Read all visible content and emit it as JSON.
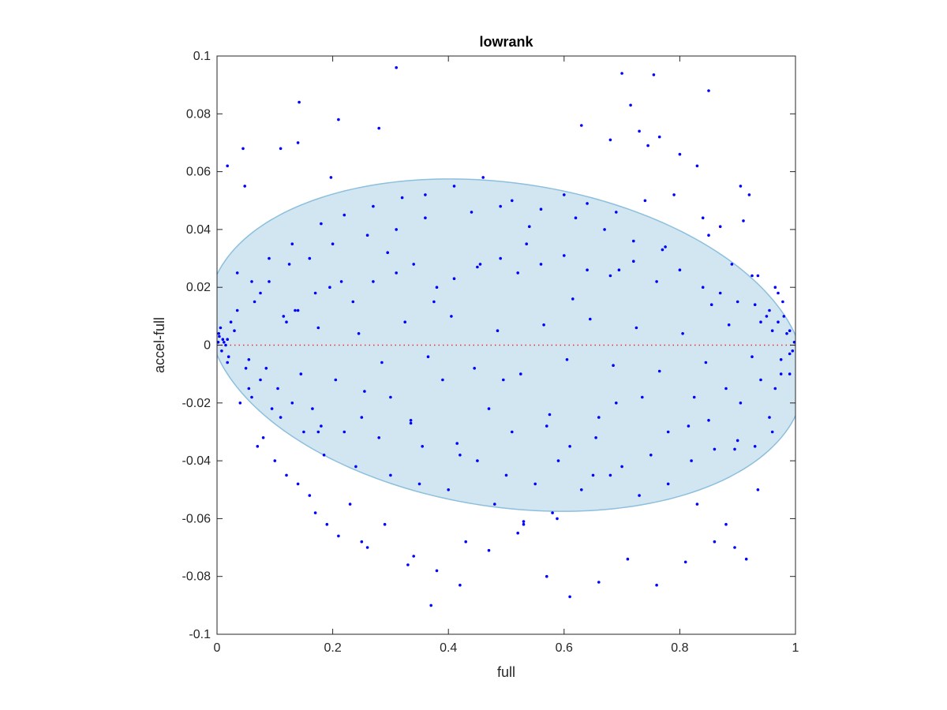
{
  "chart_data": {
    "type": "scatter",
    "title": "lowrank",
    "xlabel": "full",
    "ylabel": "accel-full",
    "xlim": [
      0,
      1
    ],
    "ylim": [
      -0.1,
      0.1
    ],
    "xticks": [
      0,
      0.2,
      0.4,
      0.6,
      0.8,
      1
    ],
    "xtick_labels": [
      "0",
      "0.2",
      "0.4",
      "0.6",
      "0.8",
      "1"
    ],
    "yticks": [
      -0.1,
      -0.08,
      -0.06,
      -0.04,
      -0.02,
      0,
      0.02,
      0.04,
      0.06,
      0.08,
      0.1
    ],
    "ytick_labels": [
      "-0.1",
      "-0.08",
      "-0.06",
      "-0.04",
      "-0.02",
      "0",
      "0.02",
      "0.04",
      "0.06",
      "0.08",
      "0.1"
    ],
    "grid": false,
    "reference_line": {
      "y": 0,
      "style": "dotted",
      "color": "#e8312f"
    },
    "ellipse": {
      "center": [
        0.5,
        0
      ],
      "x_semi_axis": 0.52,
      "y_semi_axis": 0.056,
      "tilt": "slight downward slope (top left higher than top right)",
      "fill": "#d2e6f2",
      "edge": "#8cbfdd"
    },
    "marker_color": "#0000ff",
    "series": [
      {
        "values_x": [
          0.31,
          0.7,
          0.755,
          0.85,
          0.142,
          0.715,
          0.21,
          0.63,
          0.28,
          0.004,
          0.01,
          0.003,
          0.012,
          0.008,
          0.015,
          0.02,
          0.006,
          0.018,
          0.024,
          0.002,
          0.045,
          0.048,
          0.018,
          0.11,
          0.14,
          0.197,
          0.53,
          0.588,
          0.68,
          0.73,
          0.745,
          0.765,
          0.8,
          0.83,
          0.905,
          0.92,
          0.965,
          0.98,
          0.99,
          0.995,
          0.978,
          0.955,
          0.94,
          0.975,
          0.985,
          0.998,
          0.97,
          0.99,
          0.96,
          0.93,
          0.035,
          0.06,
          0.08,
          0.12,
          0.16,
          0.19,
          0.23,
          0.26,
          0.33,
          0.37,
          0.42,
          0.47,
          0.52,
          0.57,
          0.61,
          0.66,
          0.71,
          0.76,
          0.81,
          0.86,
          0.895,
          0.04,
          0.07,
          0.1,
          0.14,
          0.17,
          0.21,
          0.25,
          0.29,
          0.34,
          0.38,
          0.43,
          0.48,
          0.53,
          0.58,
          0.63,
          0.68,
          0.73,
          0.78,
          0.83,
          0.88,
          0.915,
          0.06,
          0.09,
          0.13,
          0.18,
          0.22,
          0.27,
          0.32,
          0.36,
          0.41,
          0.46,
          0.51,
          0.56,
          0.6,
          0.64,
          0.69,
          0.74,
          0.79,
          0.84,
          0.87,
          0.91,
          0.05,
          0.075,
          0.11,
          0.15,
          0.185,
          0.24,
          0.3,
          0.35,
          0.4,
          0.45,
          0.5,
          0.55,
          0.59,
          0.65,
          0.7,
          0.75,
          0.82,
          0.86,
          0.9,
          0.935,
          0.065,
          0.09,
          0.125,
          0.16,
          0.2,
          0.26,
          0.31,
          0.36,
          0.44,
          0.49,
          0.54,
          0.62,
          0.67,
          0.72,
          0.77,
          0.85,
          0.89,
          0.925,
          0.105,
          0.13,
          0.165,
          0.18,
          0.22,
          0.25,
          0.28,
          0.3,
          0.335,
          0.355,
          0.39,
          0.42,
          0.47,
          0.51,
          0.57,
          0.61,
          0.66,
          0.69,
          0.78,
          0.825,
          0.85,
          0.88,
          0.905,
          0.94,
          0.955,
          0.965,
          0.12,
          0.14,
          0.17,
          0.195,
          0.235,
          0.27,
          0.31,
          0.34,
          0.38,
          0.41,
          0.45,
          0.49,
          0.52,
          0.56,
          0.6,
          0.64,
          0.68,
          0.72,
          0.76,
          0.8,
          0.84,
          0.87,
          0.9,
          0.93,
          0.95,
          0.97,
          0.03,
          0.055,
          0.085,
          0.115,
          0.145,
          0.175,
          0.205,
          0.245,
          0.285,
          0.325,
          0.365,
          0.405,
          0.445,
          0.485,
          0.525,
          0.565,
          0.605,
          0.645,
          0.685,
          0.725,
          0.765,
          0.805,
          0.845,
          0.885,
          0.925,
          0.96,
          0.99,
          0.018,
          0.035,
          0.055,
          0.075,
          0.095,
          0.135,
          0.175,
          0.215,
          0.255,
          0.295,
          0.335,
          0.375,
          0.415,
          0.455,
          0.495,
          0.535,
          0.575,
          0.615,
          0.655,
          0.695,
          0.735,
          0.775,
          0.815,
          0.855,
          0.895,
          0.935,
          0.975
        ],
        "values_y": [
          0.096,
          0.094,
          0.0935,
          0.088,
          0.084,
          0.083,
          0.078,
          0.076,
          0.075,
          0.003,
          0.002,
          0.004,
          0.001,
          -0.002,
          0.0,
          -0.004,
          0.006,
          -0.006,
          0.008,
          0.001,
          0.068,
          0.055,
          0.062,
          0.068,
          0.07,
          0.058,
          -0.061,
          -0.06,
          0.071,
          0.074,
          0.069,
          0.072,
          0.066,
          0.062,
          0.055,
          0.052,
          0.02,
          0.01,
          0.005,
          -0.002,
          0.015,
          0.012,
          0.008,
          -0.005,
          0.004,
          0.001,
          0.018,
          -0.01,
          -0.03,
          -0.035,
          0.012,
          -0.018,
          -0.032,
          -0.045,
          -0.052,
          -0.062,
          -0.055,
          -0.07,
          -0.076,
          -0.09,
          -0.083,
          -0.071,
          -0.065,
          -0.08,
          -0.087,
          -0.082,
          -0.074,
          -0.083,
          -0.075,
          -0.068,
          -0.07,
          -0.02,
          -0.035,
          -0.04,
          -0.048,
          -0.058,
          -0.066,
          -0.068,
          -0.062,
          -0.073,
          -0.078,
          -0.068,
          -0.055,
          -0.062,
          -0.058,
          -0.05,
          -0.045,
          -0.052,
          -0.048,
          -0.055,
          -0.062,
          -0.074,
          0.022,
          0.03,
          0.035,
          0.042,
          0.045,
          0.048,
          0.051,
          0.052,
          0.055,
          0.058,
          0.05,
          0.047,
          0.052,
          0.049,
          0.046,
          0.05,
          0.052,
          0.044,
          0.041,
          0.043,
          -0.008,
          -0.012,
          -0.025,
          -0.03,
          -0.038,
          -0.042,
          -0.045,
          -0.048,
          -0.05,
          -0.04,
          -0.045,
          -0.048,
          -0.04,
          -0.045,
          -0.042,
          -0.038,
          -0.04,
          -0.036,
          -0.033,
          -0.05,
          0.015,
          0.022,
          0.028,
          0.03,
          0.035,
          0.038,
          0.04,
          0.044,
          0.046,
          0.048,
          0.041,
          0.044,
          0.04,
          0.036,
          0.033,
          0.038,
          0.028,
          0.024,
          -0.015,
          -0.02,
          -0.022,
          -0.028,
          -0.03,
          -0.025,
          -0.032,
          -0.018,
          -0.027,
          -0.035,
          -0.012,
          -0.038,
          -0.022,
          -0.03,
          -0.028,
          -0.035,
          -0.025,
          -0.02,
          -0.03,
          -0.018,
          -0.026,
          -0.015,
          -0.02,
          -0.012,
          -0.025,
          -0.015,
          0.008,
          0.012,
          0.018,
          0.02,
          0.015,
          0.022,
          0.025,
          0.028,
          0.02,
          0.023,
          0.027,
          0.03,
          0.025,
          0.028,
          0.031,
          0.026,
          0.024,
          0.029,
          0.022,
          0.026,
          0.02,
          0.018,
          0.015,
          0.014,
          0.01,
          0.008,
          0.005,
          -0.005,
          -0.008,
          0.01,
          -0.01,
          0.006,
          -0.012,
          0.004,
          -0.006,
          0.008,
          -0.004,
          0.01,
          -0.008,
          0.005,
          -0.01,
          0.007,
          -0.005,
          0.009,
          -0.007,
          0.006,
          -0.009,
          0.004,
          -0.006,
          0.007,
          -0.004,
          0.005,
          -0.003,
          0.002,
          0.025,
          -0.015,
          0.018,
          -0.022,
          0.012,
          -0.03,
          0.022,
          -0.016,
          0.032,
          -0.026,
          0.015,
          -0.034,
          0.028,
          -0.012,
          0.035,
          -0.024,
          0.016,
          -0.032,
          0.026,
          -0.018,
          0.034,
          -0.028,
          0.014,
          -0.036,
          0.024,
          -0.01
        ]
      }
    ]
  }
}
